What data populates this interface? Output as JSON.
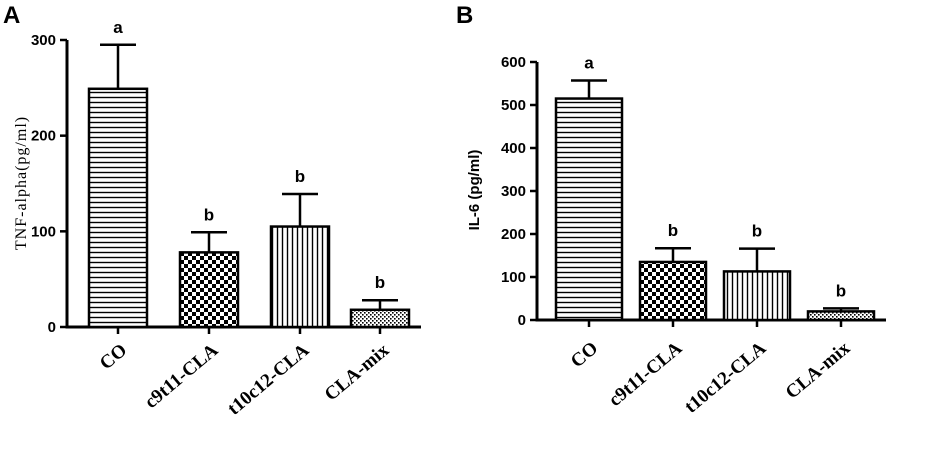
{
  "chart_data": [
    {
      "panel": "A",
      "type": "bar",
      "categories": [
        "CO",
        "c9t11-CLA",
        "t10c12-CLA",
        "CLA-mix"
      ],
      "values": [
        249,
        78,
        105,
        18
      ],
      "errors": [
        46,
        21,
        34,
        10
      ],
      "significance": [
        "a",
        "b",
        "b",
        "b"
      ],
      "patterns": [
        "hstripe",
        "checker",
        "vstripe",
        "dots"
      ],
      "title": "",
      "xlabel": "",
      "ylabel": "TNF-alpha(pg/ml)",
      "ylim": [
        0,
        300
      ],
      "yticks": [
        0,
        100,
        200,
        300
      ],
      "grid": false
    },
    {
      "panel": "B",
      "type": "bar",
      "categories": [
        "CO",
        "c9t11-CLA",
        "t10c12-CLA",
        "CLA-mix"
      ],
      "values": [
        515,
        135,
        113,
        20
      ],
      "errors": [
        42,
        32,
        53,
        7
      ],
      "significance": [
        "a",
        "b",
        "b",
        "b"
      ],
      "patterns": [
        "hstripe",
        "checker",
        "vstripe",
        "dots"
      ],
      "title": "",
      "xlabel": "",
      "ylabel": "IL-6 (pg/ml)",
      "ylim": [
        0,
        600
      ],
      "yticks": [
        0,
        100,
        200,
        300,
        400,
        500,
        600
      ],
      "grid": false
    }
  ]
}
